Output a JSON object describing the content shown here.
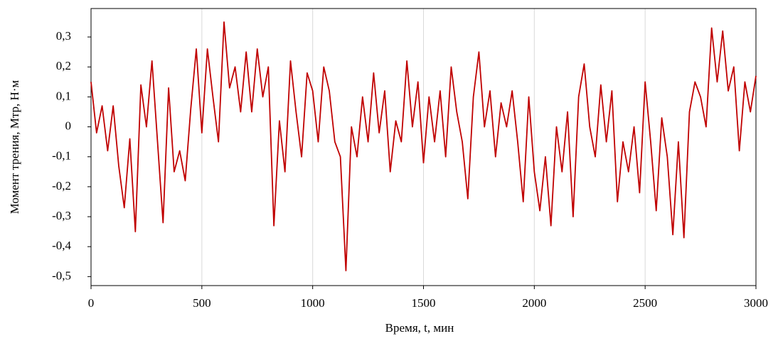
{
  "chart_data": {
    "type": "line",
    "xlabel": "Время, t, мин",
    "ylabel": "Момент трения, Mтр, Н·м",
    "x": [
      0,
      25,
      50,
      75,
      100,
      125,
      150,
      175,
      200,
      225,
      250,
      275,
      300,
      325,
      350,
      375,
      400,
      425,
      450,
      475,
      500,
      525,
      550,
      575,
      600,
      625,
      650,
      675,
      700,
      725,
      750,
      775,
      800,
      825,
      850,
      875,
      900,
      925,
      950,
      975,
      1000,
      1025,
      1050,
      1075,
      1100,
      1125,
      1150,
      1175,
      1200,
      1225,
      1250,
      1275,
      1300,
      1325,
      1350,
      1375,
      1400,
      1425,
      1450,
      1475,
      1500,
      1525,
      1550,
      1575,
      1600,
      1625,
      1650,
      1675,
      1700,
      1725,
      1750,
      1775,
      1800,
      1825,
      1850,
      1875,
      1900,
      1925,
      1950,
      1975,
      2000,
      2025,
      2050,
      2075,
      2100,
      2125,
      2150,
      2175,
      2200,
      2225,
      2250,
      2275,
      2300,
      2325,
      2350,
      2375,
      2400,
      2425,
      2450,
      2475,
      2500,
      2525,
      2550,
      2575,
      2600,
      2625,
      2650,
      2675,
      2700,
      2725,
      2750,
      2775,
      2800,
      2825,
      2850,
      2875,
      2900,
      2925,
      2950,
      2975,
      3000
    ],
    "series": [
      {
        "color": "#c00000",
        "values": [
          0.15,
          -0.02,
          0.07,
          -0.08,
          0.07,
          -0.13,
          -0.27,
          -0.04,
          -0.35,
          0.14,
          0.0,
          0.22,
          -0.05,
          -0.32,
          0.13,
          -0.15,
          -0.08,
          -0.18,
          0.06,
          0.26,
          -0.02,
          0.26,
          0.1,
          -0.05,
          0.35,
          0.13,
          0.2,
          0.05,
          0.25,
          0.05,
          0.26,
          0.1,
          0.2,
          -0.33,
          0.02,
          -0.15,
          0.22,
          0.05,
          -0.1,
          0.18,
          0.12,
          -0.05,
          0.2,
          0.12,
          -0.05,
          -0.1,
          -0.48,
          0.0,
          -0.1,
          0.1,
          -0.05,
          0.18,
          -0.02,
          0.12,
          -0.15,
          0.02,
          -0.05,
          0.22,
          0.0,
          0.15,
          -0.12,
          0.1,
          -0.05,
          0.12,
          -0.1,
          0.2,
          0.05,
          -0.05,
          -0.24,
          0.1,
          0.25,
          0.0,
          0.12,
          -0.1,
          0.08,
          0.0,
          0.12,
          -0.05,
          -0.25,
          0.1,
          -0.15,
          -0.28,
          -0.1,
          -0.33,
          0.0,
          -0.15,
          0.05,
          -0.3,
          0.1,
          0.21,
          0.0,
          -0.1,
          0.14,
          -0.05,
          0.12,
          -0.25,
          -0.05,
          -0.15,
          0.0,
          -0.22,
          0.15,
          -0.05,
          -0.28,
          0.03,
          -0.1,
          -0.36,
          -0.05,
          -0.37,
          0.05,
          0.15,
          0.1,
          0.0,
          0.33,
          0.15,
          0.32,
          0.12,
          0.2,
          -0.08,
          0.15,
          0.05,
          0.17
        ]
      }
    ],
    "xlim": [
      0,
      3000
    ],
    "xticks": [
      0,
      500,
      1000,
      1500,
      2000,
      2500,
      3000
    ],
    "ylim": [
      -0.53,
      0.395
    ],
    "yticks": [
      {
        "value": 0.3,
        "label": "0,3"
      },
      {
        "value": 0.2,
        "label": "0,2"
      },
      {
        "value": 0.1,
        "label": "0,1"
      },
      0,
      {
        "value": -0.1,
        "label": "-0,1"
      },
      {
        "value": -0.2,
        "label": "-0,2"
      },
      {
        "value": -0.3,
        "label": "-0,3"
      },
      {
        "value": -0.4,
        "label": "-0,4"
      },
      {
        "value": -0.5,
        "label": "-0,5"
      }
    ],
    "xgrid": true
  }
}
